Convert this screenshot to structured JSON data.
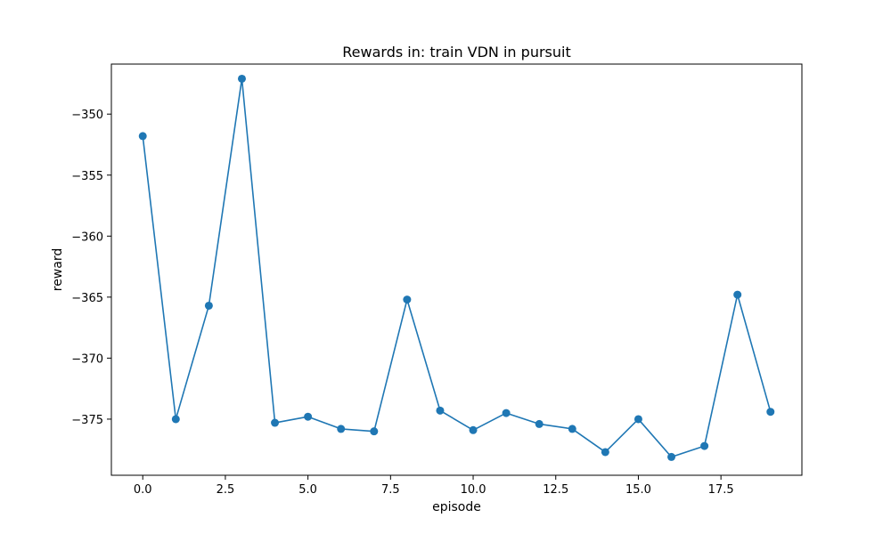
{
  "chart_data": {
    "type": "line",
    "title": "Rewards in: train VDN in pursuit",
    "xlabel": "episode",
    "ylabel": "reward",
    "xlim": [
      -0.95,
      19.95
    ],
    "ylim": [
      -379.6,
      -345.9
    ],
    "grid": false,
    "xticks": [
      {
        "value": 0.0,
        "label": "0.0"
      },
      {
        "value": 2.5,
        "label": "2.5"
      },
      {
        "value": 5.0,
        "label": "5.0"
      },
      {
        "value": 7.5,
        "label": "7.5"
      },
      {
        "value": 10.0,
        "label": "10.0"
      },
      {
        "value": 12.5,
        "label": "12.5"
      },
      {
        "value": 15.0,
        "label": "15.0"
      },
      {
        "value": 17.5,
        "label": "17.5"
      }
    ],
    "yticks": [
      {
        "value": -350,
        "label": "−350"
      },
      {
        "value": -355,
        "label": "−355"
      },
      {
        "value": -360,
        "label": "−360"
      },
      {
        "value": -365,
        "label": "−365"
      },
      {
        "value": -370,
        "label": "−370"
      },
      {
        "value": -375,
        "label": "−375"
      }
    ],
    "series": [
      {
        "color": "#1f77b4",
        "marker": "circle",
        "x": [
          0,
          1,
          2,
          3,
          4,
          5,
          6,
          7,
          8,
          9,
          10,
          11,
          12,
          13,
          14,
          15,
          16,
          17,
          18,
          19
        ],
        "y": [
          -351.8,
          -375.0,
          -365.7,
          -347.1,
          -375.3,
          -374.8,
          -375.8,
          -376.0,
          -365.2,
          -374.3,
          -375.9,
          -374.5,
          -375.4,
          -375.8,
          -377.7,
          -375.0,
          -378.1,
          -377.2,
          -364.8,
          -374.4
        ]
      }
    ]
  }
}
